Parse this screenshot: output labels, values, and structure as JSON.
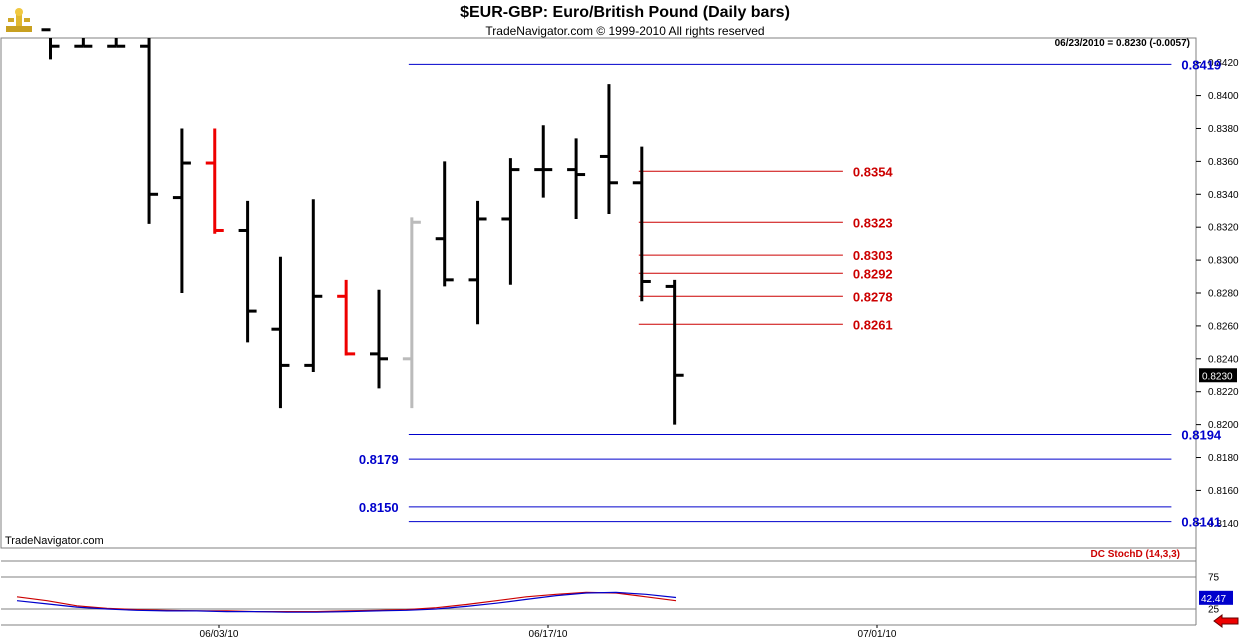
{
  "header": {
    "title": "$EUR-GBP:  Euro/British Pound  (Daily bars)",
    "subtitle": "TradeNavigator.com © 1999-2010 All rights reserved",
    "readout": "06/23/2010 = 0.8230 (-0.0057)"
  },
  "footer": {
    "watermark": "TradeNavigator.com"
  },
  "colors": {
    "up_bar": "#000000",
    "down_bar_highlight": "#ee0000",
    "gray_bar": "#bbbbbb",
    "blue_level": "#0000cc",
    "red_level": "#cc0000",
    "stoch_k": "#cc0000",
    "stoch_d": "#0000cc"
  },
  "chart_data": [
    {
      "type": "ohlc",
      "title": "$EUR-GBP:  Euro/British Pound  (Daily bars)",
      "ylim": [
        0.8125,
        0.8435
      ],
      "y_ticks": [
        "0.8420",
        "0.8400",
        "0.8380",
        "0.8360",
        "0.8340",
        "0.8320",
        "0.8300",
        "0.8280",
        "0.8260",
        "0.8240",
        "0.8220",
        "0.8200",
        "0.8180",
        "0.8160",
        "0.8140"
      ],
      "x_ticks": [
        "06/03/10",
        "06/17/10",
        "07/01/10"
      ],
      "last_price_label": "0.8230",
      "bars": [
        {
          "date": "05/26/10",
          "open": 0.844,
          "high": 0.845,
          "low": 0.8422,
          "close": 0.843,
          "color": "black"
        },
        {
          "date": "05/27/10",
          "open": 0.843,
          "high": 0.844,
          "low": 0.843,
          "close": 0.843,
          "color": "black"
        },
        {
          "date": "05/28/10",
          "open": 0.843,
          "high": 0.8435,
          "low": 0.843,
          "close": 0.843,
          "color": "black"
        },
        {
          "date": "05/31/10",
          "open": 0.843,
          "high": 0.844,
          "low": 0.8322,
          "close": 0.834,
          "color": "black"
        },
        {
          "date": "06/01/10",
          "open": 0.8338,
          "high": 0.838,
          "low": 0.828,
          "close": 0.8359,
          "color": "black"
        },
        {
          "date": "06/02/10",
          "open": 0.8359,
          "high": 0.838,
          "low": 0.8316,
          "close": 0.8318,
          "color": "red"
        },
        {
          "date": "06/03/10",
          "open": 0.8318,
          "high": 0.8336,
          "low": 0.825,
          "close": 0.8269,
          "color": "black"
        },
        {
          "date": "06/04/10",
          "open": 0.8258,
          "high": 0.8302,
          "low": 0.821,
          "close": 0.8236,
          "color": "black"
        },
        {
          "date": "06/07/10",
          "open": 0.8236,
          "high": 0.8337,
          "low": 0.8232,
          "close": 0.8278,
          "color": "black"
        },
        {
          "date": "06/08/10",
          "open": 0.8278,
          "high": 0.8288,
          "low": 0.8242,
          "close": 0.8243,
          "color": "red"
        },
        {
          "date": "06/09/10",
          "open": 0.8243,
          "high": 0.8282,
          "low": 0.8222,
          "close": 0.824,
          "color": "black"
        },
        {
          "date": "06/10/10",
          "open": 0.824,
          "high": 0.8326,
          "low": 0.821,
          "close": 0.8323,
          "color": "gray"
        },
        {
          "date": "06/11/10",
          "open": 0.8313,
          "high": 0.836,
          "low": 0.8284,
          "close": 0.8288,
          "color": "black"
        },
        {
          "date": "06/14/10",
          "open": 0.8288,
          "high": 0.8336,
          "low": 0.8261,
          "close": 0.8325,
          "color": "black"
        },
        {
          "date": "06/15/10",
          "open": 0.8325,
          "high": 0.8362,
          "low": 0.8285,
          "close": 0.8355,
          "color": "black"
        },
        {
          "date": "06/16/10",
          "open": 0.8355,
          "high": 0.8382,
          "low": 0.8338,
          "close": 0.8355,
          "color": "black"
        },
        {
          "date": "06/17/10",
          "open": 0.8355,
          "high": 0.8374,
          "low": 0.8325,
          "close": 0.8352,
          "color": "black"
        },
        {
          "date": "06/18/10",
          "open": 0.8363,
          "high": 0.8407,
          "low": 0.8328,
          "close": 0.8347,
          "color": "black"
        },
        {
          "date": "06/21/10",
          "open": 0.8347,
          "high": 0.8369,
          "low": 0.8275,
          "close": 0.8287,
          "color": "black"
        },
        {
          "date": "06/22/10",
          "open": 0.8284,
          "high": 0.8288,
          "low": 0.82,
          "close": 0.823,
          "color": "black"
        }
      ],
      "levels": [
        {
          "label": "0.8419",
          "value": 0.8419,
          "color": "blue",
          "label_side": "right",
          "from_bar": 11,
          "to_bar": 34
        },
        {
          "label": "0.8354",
          "value": 0.8354,
          "color": "red",
          "label_side": "right",
          "from_bar": 18,
          "to_bar": 24
        },
        {
          "label": "0.8323",
          "value": 0.8323,
          "color": "red",
          "label_side": "right",
          "from_bar": 18,
          "to_bar": 24
        },
        {
          "label": "0.8303",
          "value": 0.8303,
          "color": "red",
          "label_side": "right",
          "from_bar": 18,
          "to_bar": 24
        },
        {
          "label": "0.8292",
          "value": 0.8292,
          "color": "red",
          "label_side": "right",
          "from_bar": 18,
          "to_bar": 24
        },
        {
          "label": "0.8278",
          "value": 0.8278,
          "color": "red",
          "label_side": "right",
          "from_bar": 18,
          "to_bar": 24
        },
        {
          "label": "0.8261",
          "value": 0.8261,
          "color": "red",
          "label_side": "right",
          "from_bar": 18,
          "to_bar": 24
        },
        {
          "label": "0.8194",
          "value": 0.8194,
          "color": "blue",
          "label_side": "right",
          "from_bar": 11,
          "to_bar": 34
        },
        {
          "label": "0.8179",
          "value": 0.8179,
          "color": "blue",
          "label_side": "left",
          "from_bar": 11,
          "to_bar": 34
        },
        {
          "label": "0.8150",
          "value": 0.815,
          "color": "blue",
          "label_side": "left",
          "from_bar": 11,
          "to_bar": 34
        },
        {
          "label": "0.8141",
          "value": 0.8141,
          "color": "blue",
          "label_side": "right",
          "from_bar": 11,
          "to_bar": 34
        }
      ]
    },
    {
      "type": "line",
      "title": "DC StochD (14,3,3)",
      "ylim": [
        0,
        100
      ],
      "y_ticks": [
        "75",
        "25"
      ],
      "last_value_label": "42.47",
      "series": [
        {
          "name": "K",
          "color": "red",
          "values": [
            44,
            38,
            30,
            26,
            24,
            23,
            22,
            22,
            21,
            21,
            21,
            22,
            23,
            24,
            27,
            32,
            38,
            44,
            48,
            51,
            50,
            44,
            38
          ]
        },
        {
          "name": "D",
          "color": "blue",
          "values": [
            38,
            33,
            28,
            25,
            23,
            22,
            22,
            21,
            21,
            20,
            20,
            21,
            22,
            23,
            25,
            29,
            34,
            40,
            46,
            50,
            51,
            48,
            43
          ]
        }
      ]
    }
  ]
}
